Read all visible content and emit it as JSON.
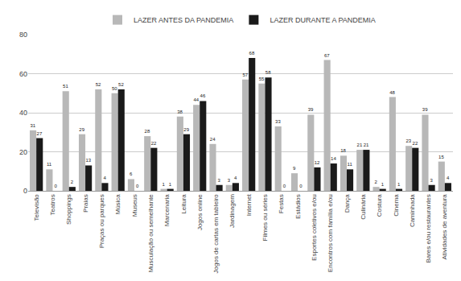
{
  "chart_data": {
    "type": "bar",
    "categories": [
      "Televisão",
      "Teatros",
      "Shoppings",
      "Praias",
      "Praças ou parques",
      "Música",
      "Museus",
      "Musculação ou semelhante",
      "Marcenaria",
      "Leitura",
      "Jogos online",
      "Jogos de cartas em tableiro",
      "Jardinagem",
      "Internet",
      "Filmes ou séries",
      "Festas",
      "Estádios",
      "Esportes coletivos e/ou",
      "Encontros com família e/ou",
      "Dança",
      "Culinária",
      "Costura",
      "Cinema",
      "Caminhada",
      "Bares e/ou restaurantes",
      "Atividades de aventura"
    ],
    "series": [
      {
        "name": "LAZER ANTES DA PANDEMIA",
        "color": "#b8b8b8",
        "values": [
          31,
          11,
          51,
          29,
          52,
          50,
          6,
          28,
          1,
          38,
          44,
          24,
          3,
          57,
          55,
          33,
          9,
          39,
          67,
          18,
          21,
          2,
          48,
          23,
          39,
          15
        ]
      },
      {
        "name": "LAZER DURANTE A PANDEMIA",
        "color": "#1a1a1a",
        "values": [
          27,
          0,
          2,
          13,
          4,
          52,
          0,
          22,
          1,
          29,
          46,
          3,
          4,
          68,
          58,
          0,
          0,
          12,
          14,
          11,
          21,
          1,
          1,
          22,
          3,
          4
        ]
      }
    ],
    "ylim": [
      0,
      80
    ],
    "yticks": [
      0,
      20,
      40,
      60,
      80
    ],
    "grid": true,
    "legend": "top",
    "data_labels": true
  }
}
